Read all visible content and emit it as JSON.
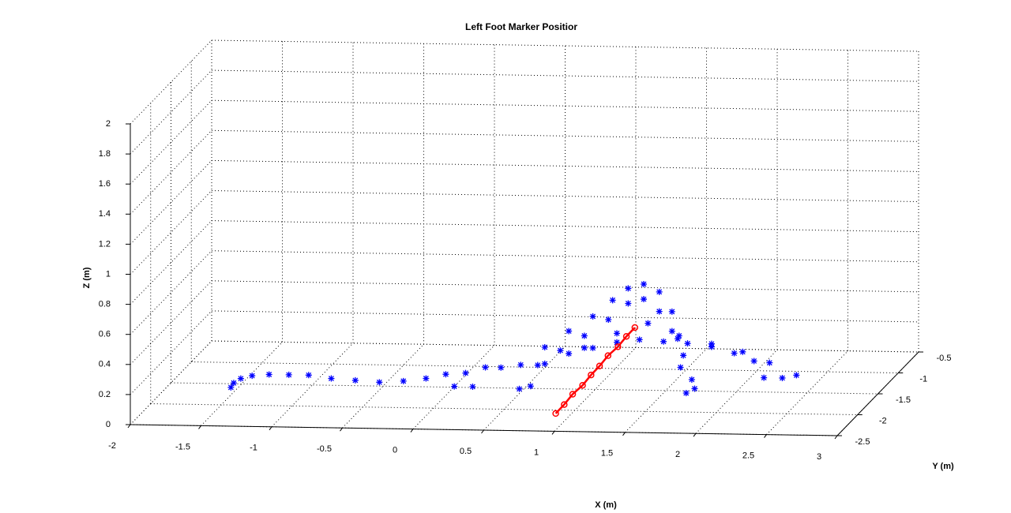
{
  "chart_data": {
    "type": "scatter3d",
    "title": "Left Foot Marker Positior",
    "xlabel": "X (m)",
    "ylabel": "Y (m)",
    "zlabel": "Z (m)",
    "xlim": [
      -2,
      3
    ],
    "ylim": [
      -2.5,
      -0.5
    ],
    "zlim": [
      0,
      2
    ],
    "xticks": [
      -2,
      -1.5,
      -1,
      -0.5,
      0,
      0.5,
      1,
      1.5,
      2,
      2.5,
      3
    ],
    "yticks": [
      -2.5,
      -2,
      -1.5,
      -1,
      -0.5
    ],
    "zticks": [
      0,
      0.2,
      0.4,
      0.6,
      0.8,
      1,
      1.2,
      1.4,
      1.6,
      1.8,
      2
    ],
    "grid": true,
    "series": [
      {
        "color": "#0000ff",
        "marker": "*",
        "line": false,
        "x": [
          -1.49,
          -1.47,
          -1.42,
          -1.34,
          -1.22,
          -1.08,
          -0.94,
          -0.78,
          -0.61,
          -0.44,
          -0.27,
          -0.11,
          0.03,
          0.09,
          0.17,
          0.22,
          0.31,
          0.42,
          0.55,
          0.63,
          0.56,
          0.73,
          0.9,
          1.07,
          1.21,
          1.32,
          1.43,
          1.54,
          1.63,
          1.67,
          1.69,
          1.73,
          0.68,
          0.84,
          1.01,
          1.18,
          1.32,
          1.43,
          1.54,
          1.63,
          1.71,
          1.77,
          1.79,
          0.73,
          0.9,
          1.07,
          1.24,
          1.4,
          1.57,
          1.74,
          1.91,
          2.07,
          2.21,
          2.28,
          1.01,
          1.24,
          1.46,
          1.68,
          1.91,
          2.13,
          2.32,
          2.41,
          2.51
        ],
        "y": [
          -1.8,
          -1.8,
          -1.8,
          -1.8,
          -1.8,
          -1.8,
          -1.8,
          -1.8,
          -1.8,
          -1.8,
          -1.8,
          -1.8,
          -1.8,
          -1.8,
          -1.8,
          -1.8,
          -1.8,
          -1.8,
          -1.8,
          -1.8,
          -1.8,
          -1.8,
          -1.8,
          -1.8,
          -1.8,
          -1.8,
          -1.8,
          -1.8,
          -1.8,
          -1.8,
          -1.8,
          -1.8,
          -1.8,
          -1.8,
          -1.8,
          -1.8,
          -1.8,
          -1.8,
          -1.8,
          -1.8,
          -1.8,
          -1.8,
          -1.8,
          -1.8,
          -1.8,
          -1.8,
          -1.8,
          -1.8,
          -1.8,
          -1.8,
          -1.8,
          -1.8,
          -1.8,
          -1.8,
          -1.8,
          -1.8,
          -1.8,
          -1.8,
          -1.8,
          -1.8,
          -1.8,
          -1.8,
          -1.8
        ],
        "z": [
          0.06,
          0.09,
          0.12,
          0.14,
          0.15,
          0.15,
          0.15,
          0.13,
          0.12,
          0.11,
          0.12,
          0.14,
          0.17,
          0.09,
          0.18,
          0.09,
          0.22,
          0.22,
          0.08,
          0.1,
          0.24,
          0.36,
          0.47,
          0.57,
          0.68,
          0.76,
          0.79,
          0.74,
          0.61,
          0.43,
          0.24,
          0.07,
          0.24,
          0.34,
          0.44,
          0.55,
          0.66,
          0.69,
          0.61,
          0.48,
          0.32,
          0.16,
          0.1,
          0.25,
          0.32,
          0.36,
          0.4,
          0.42,
          0.41,
          0.4,
          0.38,
          0.34,
          0.29,
          0.18,
          0.36,
          0.46,
          0.53,
          0.45,
          0.4,
          0.35,
          0.28,
          0.18,
          0.2
        ]
      },
      {
        "color": "#ff0000",
        "marker": "o",
        "line": true,
        "x": [
          0.98,
          1.04,
          1.1,
          1.17,
          1.23,
          1.29,
          1.35,
          1.42,
          1.48,
          1.54
        ],
        "y": [
          -2.4,
          -2.4,
          -2.4,
          -2.4,
          -2.4,
          -2.4,
          -2.4,
          -2.4,
          -2.4,
          -2.4
        ],
        "z": [
          0.09,
          0.15,
          0.22,
          0.28,
          0.35,
          0.41,
          0.48,
          0.54,
          0.61,
          0.67
        ]
      }
    ]
  }
}
